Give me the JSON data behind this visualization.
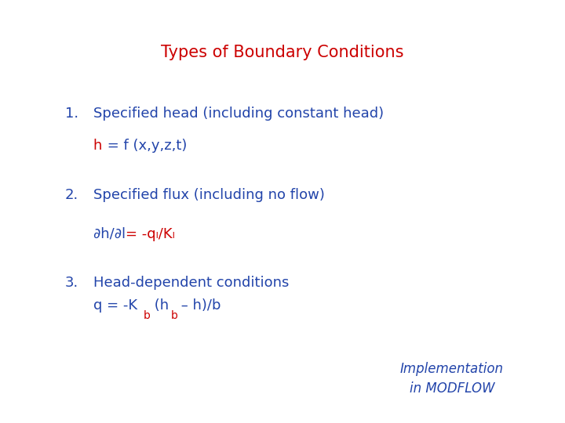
{
  "title": "Types of Boundary Conditions",
  "title_color": "#cc0000",
  "title_fontsize": 15,
  "bg_color": "#ffffff",
  "blue_color": "#2244aa",
  "red_color": "#cc0000",
  "item1_text": "Specified head (including constant head)",
  "item1_sub_red": "h",
  "item1_sub_blue": " = f (x,y,z,t)",
  "item2_text": "Specified flux (including no flow)",
  "item2_sub_blue": "∂h/∂l ",
  "item2_sub_red": "= -qₗ/Kₗ",
  "item3_text": "Head-dependent conditions",
  "footer_line1": "Implementation",
  "footer_line2": "in MODFLOW",
  "main_fontsize": 13,
  "sub_fontsize": 13,
  "footer_fontsize": 12
}
